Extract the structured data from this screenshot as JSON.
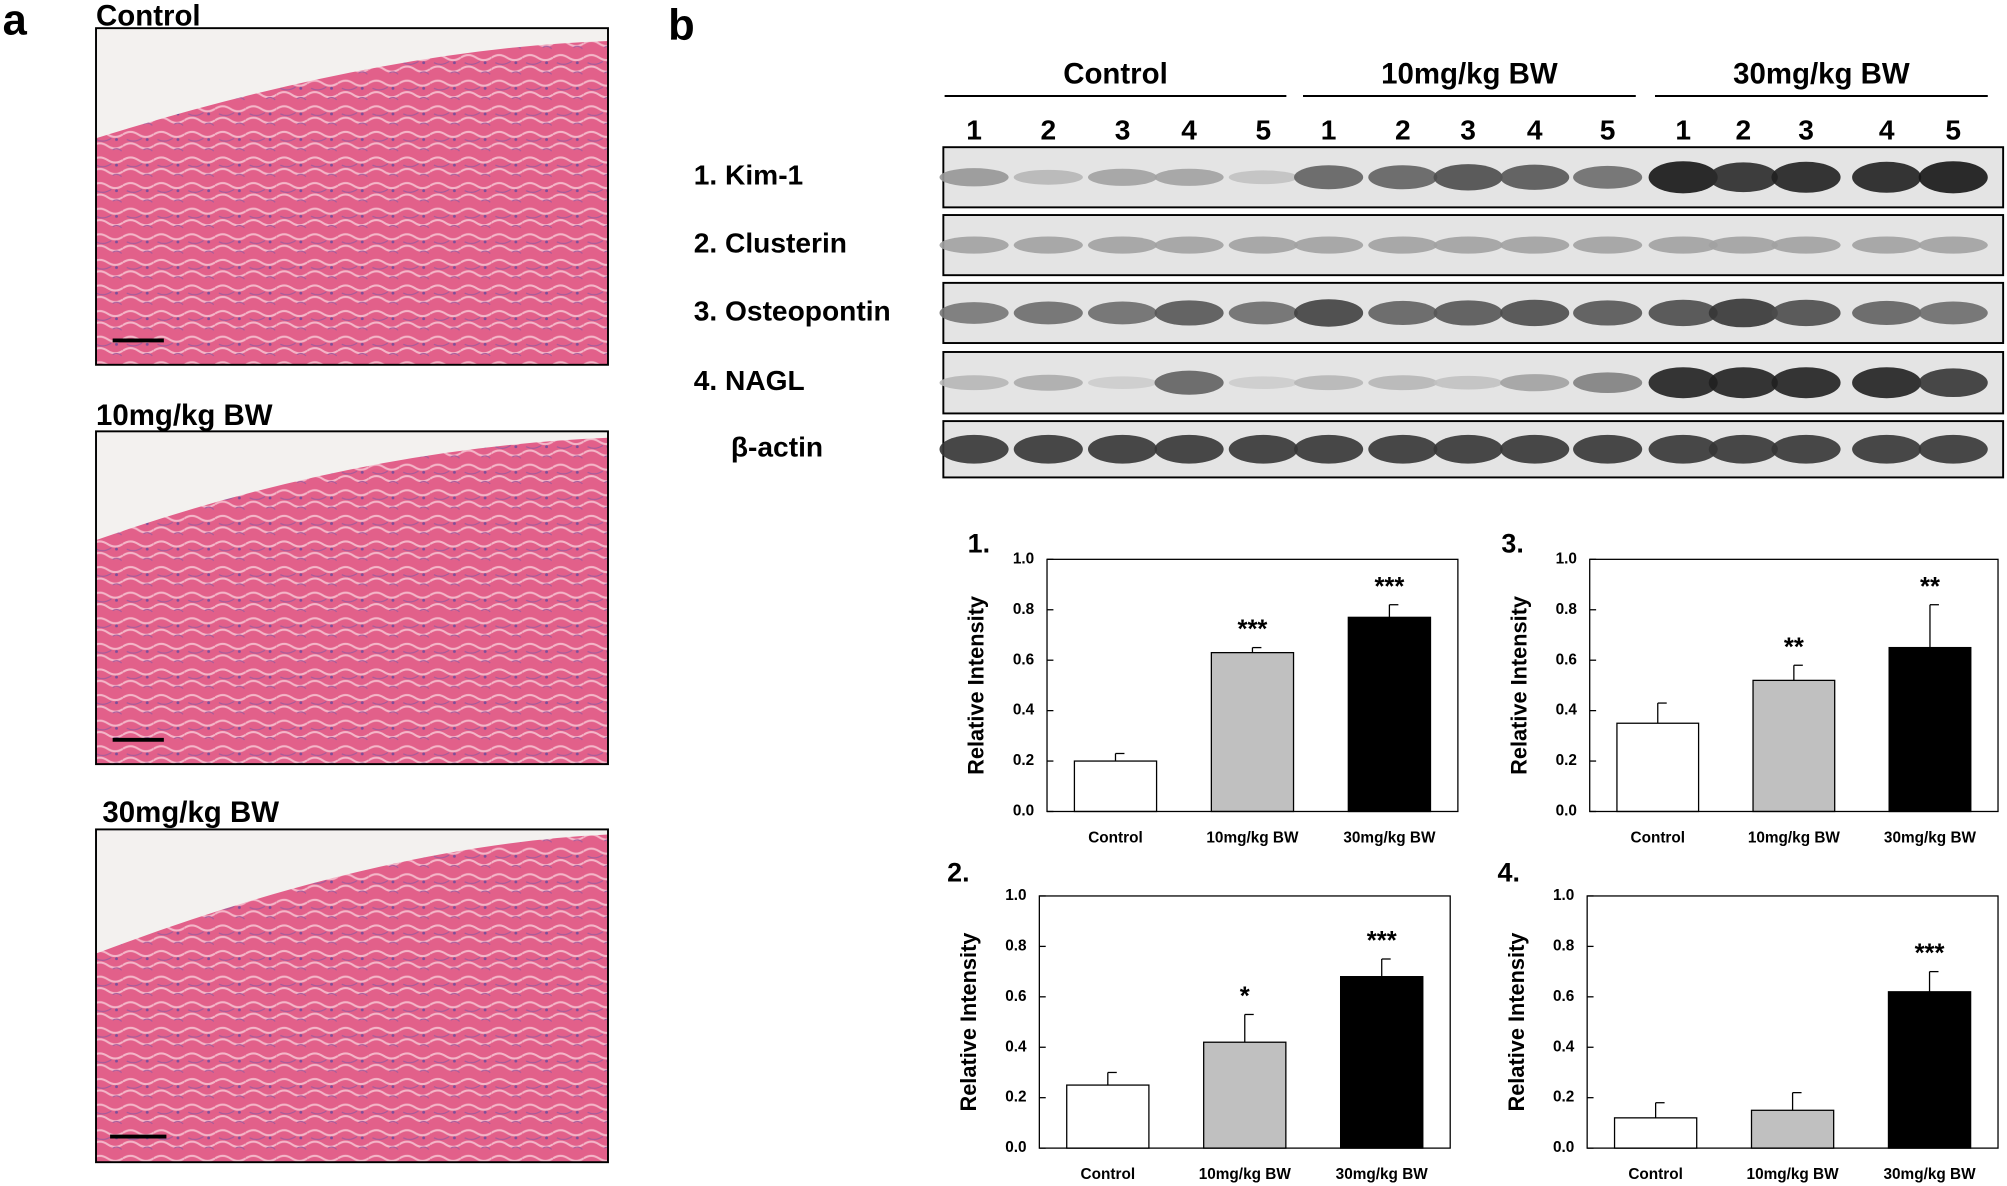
{
  "panel_a": {
    "label": "a",
    "captions": [
      "Control",
      "10mg/kg BW",
      "30mg/kg BW"
    ]
  },
  "panel_b": {
    "label": "b",
    "groups": [
      "Control",
      "10mg/kg BW",
      "30mg/kg BW"
    ],
    "lanes": [
      "1",
      "2",
      "3",
      "4",
      "5",
      "1",
      "2",
      "3",
      "4",
      "5",
      "1",
      "2",
      "3",
      "4",
      "5"
    ],
    "rows": [
      "1. Kim-1",
      "2. Clusterin",
      "3. Osteopontin",
      "4. NAGL",
      "β-actin"
    ]
  },
  "chart_data": [
    {
      "type": "bar",
      "title": "1.",
      "y_label": "Relative Intensity",
      "categories": [
        "Control",
        "10mg/kg BW",
        "30mg/kg BW"
      ],
      "values": [
        0.2,
        0.63,
        0.77
      ],
      "errors": [
        0.03,
        0.02,
        0.05
      ],
      "annotations": [
        null,
        "***",
        "***"
      ],
      "colors": [
        "#ffffff",
        "#c0c0c0",
        "#000000"
      ],
      "ylim": [
        0,
        1
      ],
      "yticks": [
        {
          "value": 0,
          "label": "0.0"
        },
        0.2,
        0.4,
        0.6,
        0.8,
        {
          "value": 1,
          "label": "1.0"
        }
      ]
    },
    {
      "type": "bar",
      "title": "3.",
      "y_label": "Relative Intensity",
      "categories": [
        "Control",
        "10mg/kg BW",
        "30mg/kg BW"
      ],
      "values": [
        0.35,
        0.52,
        0.65
      ],
      "errors": [
        0.08,
        0.06,
        0.17
      ],
      "annotations": [
        null,
        "**",
        "**"
      ],
      "colors": [
        "#ffffff",
        "#c0c0c0",
        "#000000"
      ],
      "ylim": [
        0,
        1
      ],
      "yticks": [
        {
          "value": 0,
          "label": "0.0"
        },
        0.2,
        0.4,
        0.6,
        0.8,
        {
          "value": 1,
          "label": "1.0"
        }
      ]
    },
    {
      "type": "bar",
      "title": "2.",
      "y_label": "Relative Intensity",
      "categories": [
        "Control",
        "10mg/kg BW",
        "30mg/kg BW"
      ],
      "values": [
        0.25,
        0.42,
        0.68
      ],
      "errors": [
        0.05,
        0.11,
        0.07
      ],
      "annotations": [
        null,
        "*",
        "***"
      ],
      "colors": [
        "#ffffff",
        "#c0c0c0",
        "#000000"
      ],
      "ylim": [
        0,
        1
      ],
      "yticks": [
        {
          "value": 0,
          "label": "0.0"
        },
        0.2,
        0.4,
        0.6,
        0.8,
        {
          "value": 1,
          "label": "1.0"
        }
      ]
    },
    {
      "type": "bar",
      "title": "4.",
      "y_label": "Relative Intensity",
      "categories": [
        "Control",
        "10mg/kg BW",
        "30mg/kg BW"
      ],
      "values": [
        0.12,
        0.15,
        0.62
      ],
      "errors": [
        0.06,
        0.07,
        0.08
      ],
      "annotations": [
        null,
        null,
        "***"
      ],
      "colors": [
        "#ffffff",
        "#c0c0c0",
        "#000000"
      ],
      "ylim": [
        0,
        1
      ],
      "yticks": [
        {
          "value": 0,
          "label": "0.0"
        },
        0.2,
        0.4,
        0.6,
        0.8,
        {
          "value": 1,
          "label": "1.0"
        }
      ]
    }
  ]
}
